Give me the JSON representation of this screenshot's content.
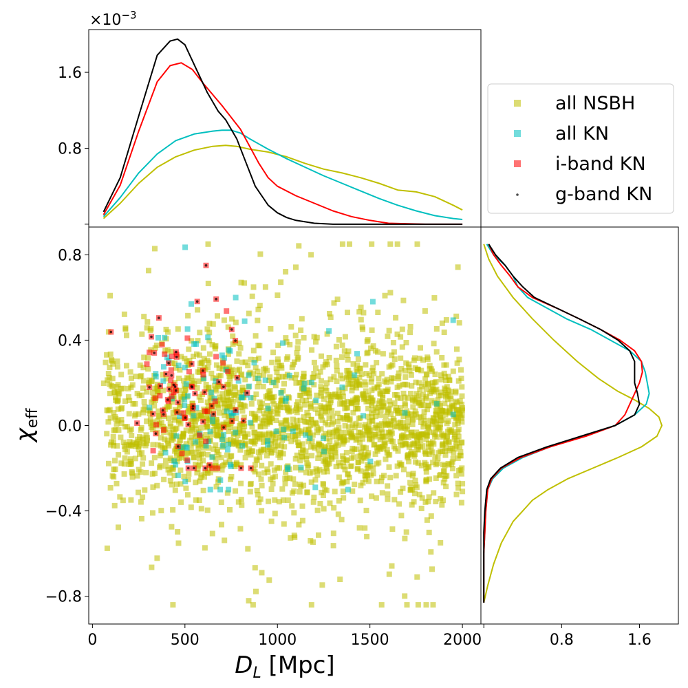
{
  "chart_data": {
    "type": "scatter",
    "layout": "joint-plot with marginal KDE curves",
    "xlabel_main": "D",
    "xlabel_sub": "L",
    "xlabel_units": " [Mpc]",
    "ylabel_main": "χ",
    "ylabel_sub": "eff",
    "xlim": [
      -20,
      2100
    ],
    "ylim": [
      -0.93,
      0.93
    ],
    "x_ticks": [
      0,
      500,
      1000,
      1500,
      2000
    ],
    "x_tick_labels": [
      "0",
      "500",
      "1000",
      "1500",
      "2000"
    ],
    "y_ticks": [
      0.8,
      0.4,
      0.0,
      -0.4,
      -0.8
    ],
    "y_tick_labels": [
      "0.8",
      "0.4",
      "0.0",
      "−0.4",
      "−0.8"
    ],
    "top_marginal": {
      "scale_label": "×10",
      "scale_exponent": "−3",
      "ylim": [
        -3e-05,
        0.00205
      ],
      "y_ticks": [
        0.0,
        0.0008,
        0.0016
      ],
      "y_tick_labels": [
        "",
        "0.8",
        "1.6"
      ]
    },
    "right_marginal": {
      "xlim": [
        -0.03,
        2.0
      ],
      "x_ticks": [
        0.8,
        1.6
      ],
      "x_tick_labels": [
        "0.8",
        "1.6"
      ]
    },
    "legend": {
      "placement": "upper-right outside",
      "entries": [
        {
          "label": "all NSBH",
          "marker": "square",
          "color": "#bfbf00"
        },
        {
          "label": "all KN",
          "marker": "square",
          "color": "#00bfbf"
        },
        {
          "label": "i-band KN",
          "marker": "square",
          "color": "#ff0000"
        },
        {
          "label": "g-band KN",
          "marker": "dot",
          "color": "#000000"
        }
      ]
    },
    "series": [
      {
        "name": "all NSBH",
        "color": "#bfbf00",
        "scatter_note": "dense cloud of about 2500 events over D_L 60-2000 Mpc, chi_eff -0.85 to 0.85",
        "top_kde_x": [
          60,
          150,
          250,
          350,
          450,
          550,
          650,
          720,
          780,
          850,
          950,
          1050,
          1150,
          1250,
          1350,
          1450,
          1550,
          1650,
          1750,
          1850,
          1950,
          2000
        ],
        "top_kde_y": [
          6e-05,
          0.00022,
          0.00043,
          0.0006,
          0.00071,
          0.00078,
          0.00082,
          0.00083,
          0.00082,
          0.00079,
          0.00076,
          0.00071,
          0.00064,
          0.00058,
          0.00054,
          0.00049,
          0.00043,
          0.00036,
          0.00034,
          0.00029,
          0.0002,
          0.00015
        ],
        "right_kde_y": [
          0.85,
          0.78,
          0.7,
          0.6,
          0.5,
          0.4,
          0.3,
          0.22,
          0.16,
          0.12,
          0.08,
          0.04,
          0.0,
          -0.05,
          -0.1,
          -0.15,
          -0.2,
          -0.25,
          -0.3,
          -0.35,
          -0.45,
          -0.55,
          -0.65,
          -0.75,
          -0.83
        ],
        "right_kde_x": [
          0.0,
          0.05,
          0.14,
          0.3,
          0.5,
          0.72,
          0.96,
          1.18,
          1.38,
          1.55,
          1.7,
          1.8,
          1.83,
          1.78,
          1.62,
          1.38,
          1.12,
          0.86,
          0.66,
          0.5,
          0.3,
          0.18,
          0.1,
          0.04,
          0.0
        ]
      },
      {
        "name": "all KN",
        "color": "#00bfbf",
        "scatter_note": "about 150 events concentrated at D_L < 1500 Mpc",
        "top_kde_x": [
          60,
          150,
          250,
          350,
          450,
          550,
          650,
          700,
          750,
          800,
          850,
          950,
          1050,
          1150,
          1250,
          1350,
          1450,
          1550,
          1650,
          1750,
          1850,
          1950,
          2000
        ],
        "top_kde_y": [
          8e-05,
          0.00028,
          0.00054,
          0.00074,
          0.00088,
          0.00095,
          0.00098,
          0.00099,
          0.00099,
          0.00096,
          0.0009,
          0.00079,
          0.00069,
          0.0006,
          0.00051,
          0.00043,
          0.00035,
          0.00027,
          0.0002,
          0.00014,
          9e-05,
          6e-05,
          5e-05
        ],
        "right_kde_y": [
          0.85,
          0.8,
          0.75,
          0.7,
          0.65,
          0.6,
          0.55,
          0.5,
          0.45,
          0.4,
          0.35,
          0.3,
          0.25,
          0.2,
          0.15,
          0.1,
          0.05,
          0.0,
          -0.05,
          -0.1,
          -0.15,
          -0.2,
          -0.25,
          -0.3,
          -0.4,
          -0.5,
          -0.6,
          -0.7,
          -0.83
        ],
        "right_kde_x": [
          0.03,
          0.1,
          0.22,
          0.3,
          0.35,
          0.45,
          0.65,
          0.85,
          1.1,
          1.3,
          1.5,
          1.62,
          1.66,
          1.68,
          1.7,
          1.67,
          1.55,
          1.35,
          1.02,
          0.68,
          0.4,
          0.2,
          0.09,
          0.04,
          0.02,
          0.01,
          0.0,
          0.0,
          0.0
        ]
      },
      {
        "name": "i-band KN",
        "color": "#ff0000",
        "scatter_note": "about 90 events concentrated at D_L < 1000 Mpc",
        "top_kde_x": [
          60,
          150,
          250,
          350,
          420,
          480,
          540,
          600,
          700,
          800,
          850,
          900,
          950,
          1000,
          1100,
          1200,
          1300,
          1400,
          1500,
          1600,
          1800,
          2000
        ],
        "top_kde_y": [
          0.0001,
          0.00041,
          0.00098,
          0.0015,
          0.00167,
          0.0017,
          0.00163,
          0.00148,
          0.00125,
          0.001,
          0.00082,
          0.00064,
          0.00049,
          0.0004,
          0.0003,
          0.00022,
          0.00014,
          8e-05,
          4e-05,
          1e-05,
          0.0,
          0.0
        ],
        "right_kde_y": [
          0.85,
          0.8,
          0.75,
          0.7,
          0.65,
          0.6,
          0.55,
          0.5,
          0.45,
          0.4,
          0.35,
          0.3,
          0.25,
          0.2,
          0.15,
          0.1,
          0.05,
          0.0,
          -0.05,
          -0.1,
          -0.15,
          -0.2,
          -0.25,
          -0.3,
          -0.4,
          -0.5,
          -0.6,
          -0.7,
          -0.83
        ],
        "right_kde_x": [
          0.05,
          0.1,
          0.18,
          0.27,
          0.35,
          0.5,
          0.75,
          0.98,
          1.2,
          1.4,
          1.55,
          1.62,
          1.63,
          1.6,
          1.55,
          1.5,
          1.45,
          1.35,
          1.05,
          0.68,
          0.38,
          0.18,
          0.08,
          0.04,
          0.02,
          0.01,
          0.0,
          0.0,
          0.0
        ]
      },
      {
        "name": "g-band KN",
        "color": "#000000",
        "scatter_note": "about 65 events concentrated at D_L < 900 Mpc, overlapping i-band KN",
        "top_kde_x": [
          60,
          150,
          250,
          350,
          420,
          460,
          500,
          560,
          620,
          680,
          720,
          780,
          820,
          880,
          950,
          1000,
          1050,
          1100,
          1200,
          1300,
          1500,
          1800,
          2000
        ],
        "top_kde_y": [
          0.00013,
          0.00049,
          0.00114,
          0.00178,
          0.00193,
          0.00195,
          0.00189,
          0.00164,
          0.00139,
          0.00119,
          0.0011,
          0.0009,
          0.0007,
          0.0004,
          0.0002,
          0.00012,
          7e-05,
          4e-05,
          1e-05,
          0.0,
          0.0,
          0.0,
          0.0
        ],
        "right_kde_y": [
          0.85,
          0.8,
          0.75,
          0.7,
          0.65,
          0.6,
          0.55,
          0.5,
          0.45,
          0.4,
          0.35,
          0.3,
          0.25,
          0.2,
          0.15,
          0.1,
          0.05,
          0.0,
          -0.05,
          -0.1,
          -0.15,
          -0.2,
          -0.25,
          -0.3,
          -0.4,
          -0.5,
          -0.6,
          -0.7,
          -0.83
        ],
        "right_kde_x": [
          0.05,
          0.12,
          0.22,
          0.3,
          0.4,
          0.52,
          0.75,
          0.98,
          1.2,
          1.38,
          1.5,
          1.55,
          1.55,
          1.55,
          1.58,
          1.6,
          1.55,
          1.35,
          1.0,
          0.65,
          0.35,
          0.17,
          0.07,
          0.03,
          0.01,
          0.0,
          0.0,
          0.0,
          0.0
        ]
      }
    ]
  }
}
